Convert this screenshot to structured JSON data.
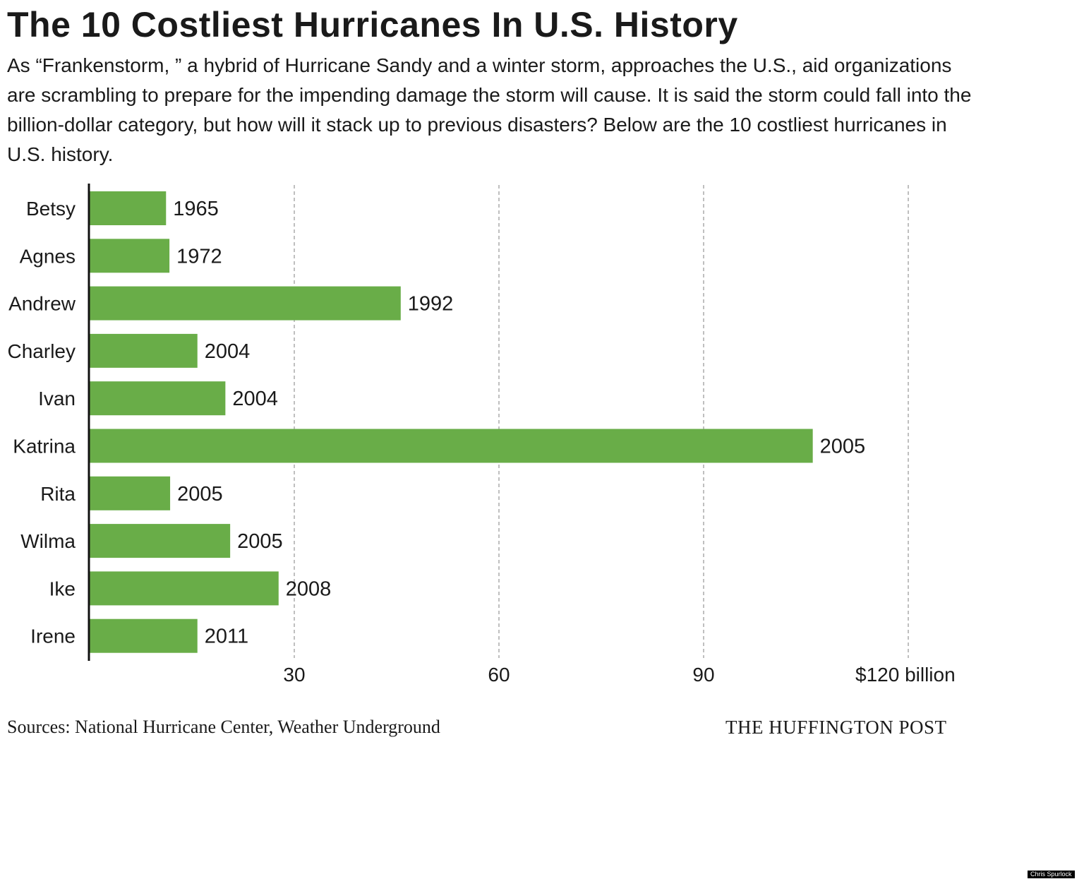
{
  "title": "The 10 Costliest Hurricanes In U.S. History",
  "subtitle": "As “Frankenstorm, ” a hybrid of Hurricane Sandy and a winter storm, approaches the U.S., aid organizations are scrambling to prepare for the impending damage the storm will cause. It is said the storm could fall into the billion-dollar category, but how will it stack up to previous disasters? Below are the 10 costliest hurricanes in U.S. history.",
  "source": "Sources: National Hurricane Center, Weather Underground",
  "brand": "THE HUFFINGTON POST",
  "credit": "Chris Spurlock",
  "chart_data": {
    "type": "bar",
    "orientation": "horizontal",
    "title": "The 10 Costliest Hurricanes In U.S. History",
    "categories": [
      "Betsy",
      "Agnes",
      "Andrew",
      "Charley",
      "Ivan",
      "Katrina",
      "Rita",
      "Wilma",
      "Ike",
      "Irene"
    ],
    "values": [
      11.2,
      11.7,
      45.6,
      15.8,
      19.9,
      106,
      11.8,
      20.6,
      27.7,
      15.8
    ],
    "data_labels": [
      "1965",
      "1972",
      "1992",
      "2004",
      "2004",
      "2005",
      "2005",
      "2005",
      "2008",
      "2011"
    ],
    "unit": "billion dollars",
    "xlim": [
      0,
      120
    ],
    "xticks": [
      30,
      60,
      90,
      120
    ],
    "xtick_labels": [
      "30",
      "60",
      "90",
      "$120 billion"
    ],
    "grid": "vertical dotted",
    "bar_color": "#69ad48"
  }
}
